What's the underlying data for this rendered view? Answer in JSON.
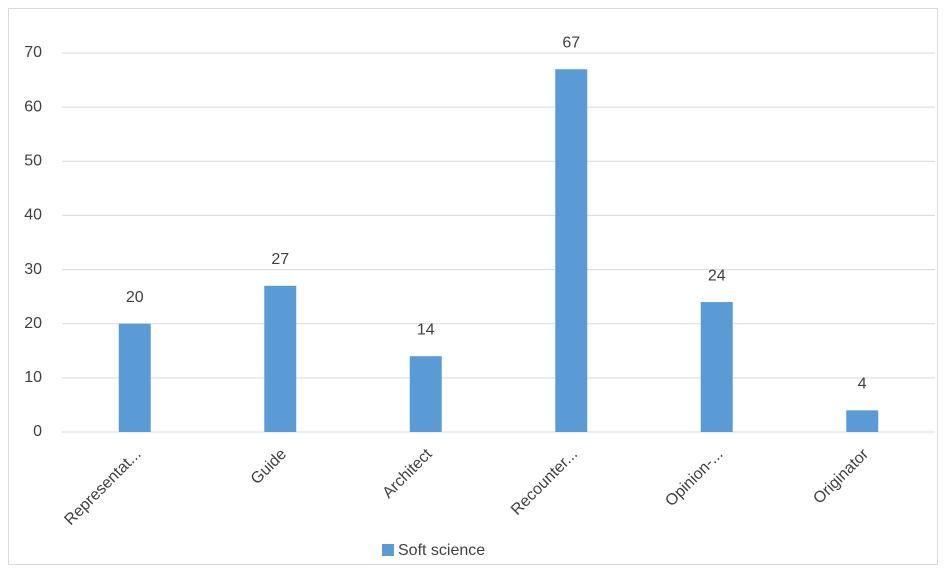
{
  "chart_data": {
    "type": "bar",
    "categories": [
      "Representat...",
      "Guide",
      "Architect",
      "Recounter...",
      "Opinion-...",
      "Originator"
    ],
    "series": [
      {
        "name": "Soft science",
        "color": "#5b9bd5",
        "values": [
          20,
          27,
          14,
          67,
          24,
          4
        ]
      }
    ],
    "ylim": [
      0,
      70
    ],
    "yticks": [
      0,
      10,
      20,
      30,
      40,
      50,
      60,
      70
    ],
    "grid": true,
    "legend": "bottom"
  }
}
